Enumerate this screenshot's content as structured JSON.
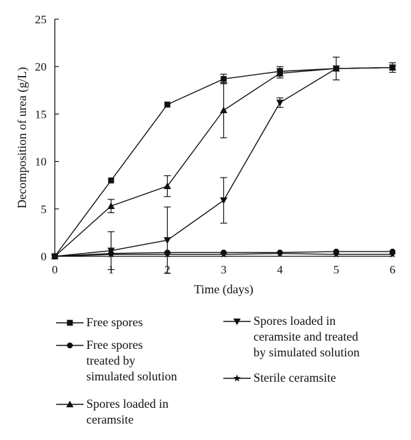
{
  "chart_data": {
    "type": "line",
    "title": "",
    "xlabel": "Time (days)",
    "ylabel": "Decomposition of urea (g/L)",
    "xlim": [
      0,
      6
    ],
    "ylim": [
      0,
      25
    ],
    "xticks": [
      0,
      1,
      2,
      3,
      4,
      5,
      6
    ],
    "yticks": [
      0,
      5,
      10,
      15,
      20,
      25
    ],
    "grid": false,
    "legend_position": "bottom",
    "x": [
      0,
      1,
      2,
      3,
      4,
      5,
      6
    ],
    "series": [
      {
        "name": "Free spores",
        "marker": "square",
        "values": [
          0,
          8.0,
          16.0,
          18.7,
          19.5,
          19.8,
          19.9
        ],
        "errors": [
          0,
          0,
          0,
          0.5,
          0.5,
          0,
          0.5
        ]
      },
      {
        "name": "Free spores\ntreated by\nsimulated solution",
        "marker": "circle",
        "values": [
          0,
          0.3,
          0.4,
          0.4,
          0.4,
          0.5,
          0.5
        ],
        "errors": [
          0,
          0,
          0,
          0,
          0,
          0,
          0
        ]
      },
      {
        "name": "Spores loaded in\nceramsite",
        "marker": "triangle-up",
        "values": [
          0,
          5.3,
          7.4,
          15.4,
          19.3,
          19.8,
          19.9
        ],
        "errors": [
          0,
          0.7,
          1.1,
          2.9,
          0.5,
          0,
          0
        ]
      },
      {
        "name": "Spores loaded in\nceramsite and treated\nby simulated solution",
        "marker": "triangle-down",
        "values": [
          0,
          0.6,
          1.7,
          5.9,
          16.2,
          19.8,
          19.9
        ],
        "errors": [
          0,
          2.0,
          3.5,
          2.4,
          0.5,
          1.2,
          0
        ]
      },
      {
        "name": "Sterile ceramsite",
        "marker": "star",
        "values": [
          0,
          0.2,
          0.2,
          0.2,
          0.3,
          0.2,
          0.2
        ],
        "errors": [
          0,
          0,
          0,
          0,
          0,
          0,
          0
        ]
      }
    ]
  }
}
